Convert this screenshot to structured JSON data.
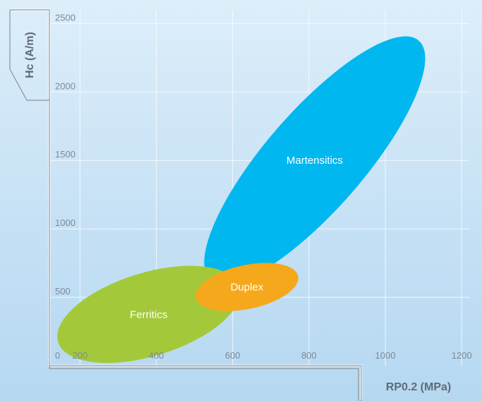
{
  "chart_data": {
    "type": "scatter",
    "title": "",
    "xlabel": "RP0.2 (MPa)",
    "ylabel": "Hc (A/m)",
    "xlim": [
      120,
      1220
    ],
    "ylim": [
      0,
      2600
    ],
    "x_ticks": [
      "200",
      "400",
      "600",
      "800",
      "1000",
      "1200"
    ],
    "y_ticks": [
      "0",
      "500",
      "1000",
      "1500",
      "2000",
      "2500"
    ],
    "grid": true,
    "legend": "none",
    "series": [
      {
        "name": "Ferritics",
        "color": "#a3c93a",
        "x_range": [
          140,
          620
        ],
        "y_range": [
          150,
          600
        ]
      },
      {
        "name": "Duplex",
        "color": "#f5a81c",
        "x_range": [
          505,
          770
        ],
        "y_range": [
          450,
          700
        ]
      },
      {
        "name": "Martensitics",
        "color": "#00b7f0",
        "x_range": [
          520,
          1110
        ],
        "y_range": [
          650,
          2350
        ]
      }
    ]
  }
}
